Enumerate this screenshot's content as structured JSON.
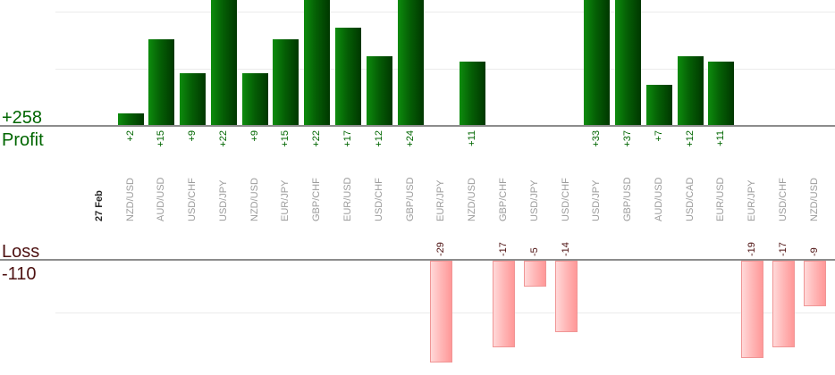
{
  "summary": {
    "profit_total": "+258",
    "profit_label": "Profit",
    "loss_total": "-110",
    "loss_label": "Loss"
  },
  "chart_data": {
    "type": "bar",
    "title": "",
    "x_axis_first_tick": "27 Feb",
    "profit_axis": {
      "total_label": "+258",
      "name": "Profit",
      "range": [
        0,
        22
      ],
      "gridlines": [
        10,
        20
      ],
      "grid": true
    },
    "loss_axis": {
      "total_label": "-110",
      "name": "Loss",
      "range": [
        0,
        -20
      ],
      "gridlines": [
        -10
      ],
      "grid": true
    },
    "legend_position": "none",
    "points": [
      {
        "label": "27 Feb",
        "value": null,
        "is_date": true
      },
      {
        "label": "NZD/USD",
        "value": 2
      },
      {
        "label": "AUD/USD",
        "value": 15
      },
      {
        "label": "USD/CHF",
        "value": 9
      },
      {
        "label": "USD/JPY",
        "value": 22
      },
      {
        "label": "NZD/USD",
        "value": 9
      },
      {
        "label": "EUR/JPY",
        "value": 15
      },
      {
        "label": "GBP/CHF",
        "value": 22
      },
      {
        "label": "EUR/USD",
        "value": 17
      },
      {
        "label": "USD/CHF",
        "value": 12
      },
      {
        "label": "GBP/USD",
        "value": 24
      },
      {
        "label": "EUR/JPY",
        "value": -29
      },
      {
        "label": "NZD/USD",
        "value": 11
      },
      {
        "label": "GBP/CHF",
        "value": -17
      },
      {
        "label": "USD/JPY",
        "value": -5
      },
      {
        "label": "USD/CHF",
        "value": -14
      },
      {
        "label": "USD/JPY",
        "value": 33
      },
      {
        "label": "GBP/USD",
        "value": 37
      },
      {
        "label": "AUD/USD",
        "value": 7
      },
      {
        "label": "USD/CAD",
        "value": 12
      },
      {
        "label": "EUR/USD",
        "value": 11
      },
      {
        "label": "EUR/JPY",
        "value": -19
      },
      {
        "label": "USD/CHF",
        "value": -17
      },
      {
        "label": "NZD/USD",
        "value": -9
      }
    ]
  },
  "colors": {
    "profit_text": "#006600",
    "loss_text": "#4d1111",
    "category_text": "#9c9c9c",
    "date_text": "#262626",
    "axis_line": "#8c8c8c",
    "gridline": "#ececec",
    "bar_green_light": "#0d8c0d",
    "bar_green_mid": "#056005",
    "bar_green_dark": "#003700",
    "bar_green_border": "#123512",
    "bar_pink_light": "#ffd9d9",
    "bar_pink_mid": "#ffb6b6",
    "bar_pink_dark": "#ff9898",
    "bar_pink_border": "#f09595"
  }
}
